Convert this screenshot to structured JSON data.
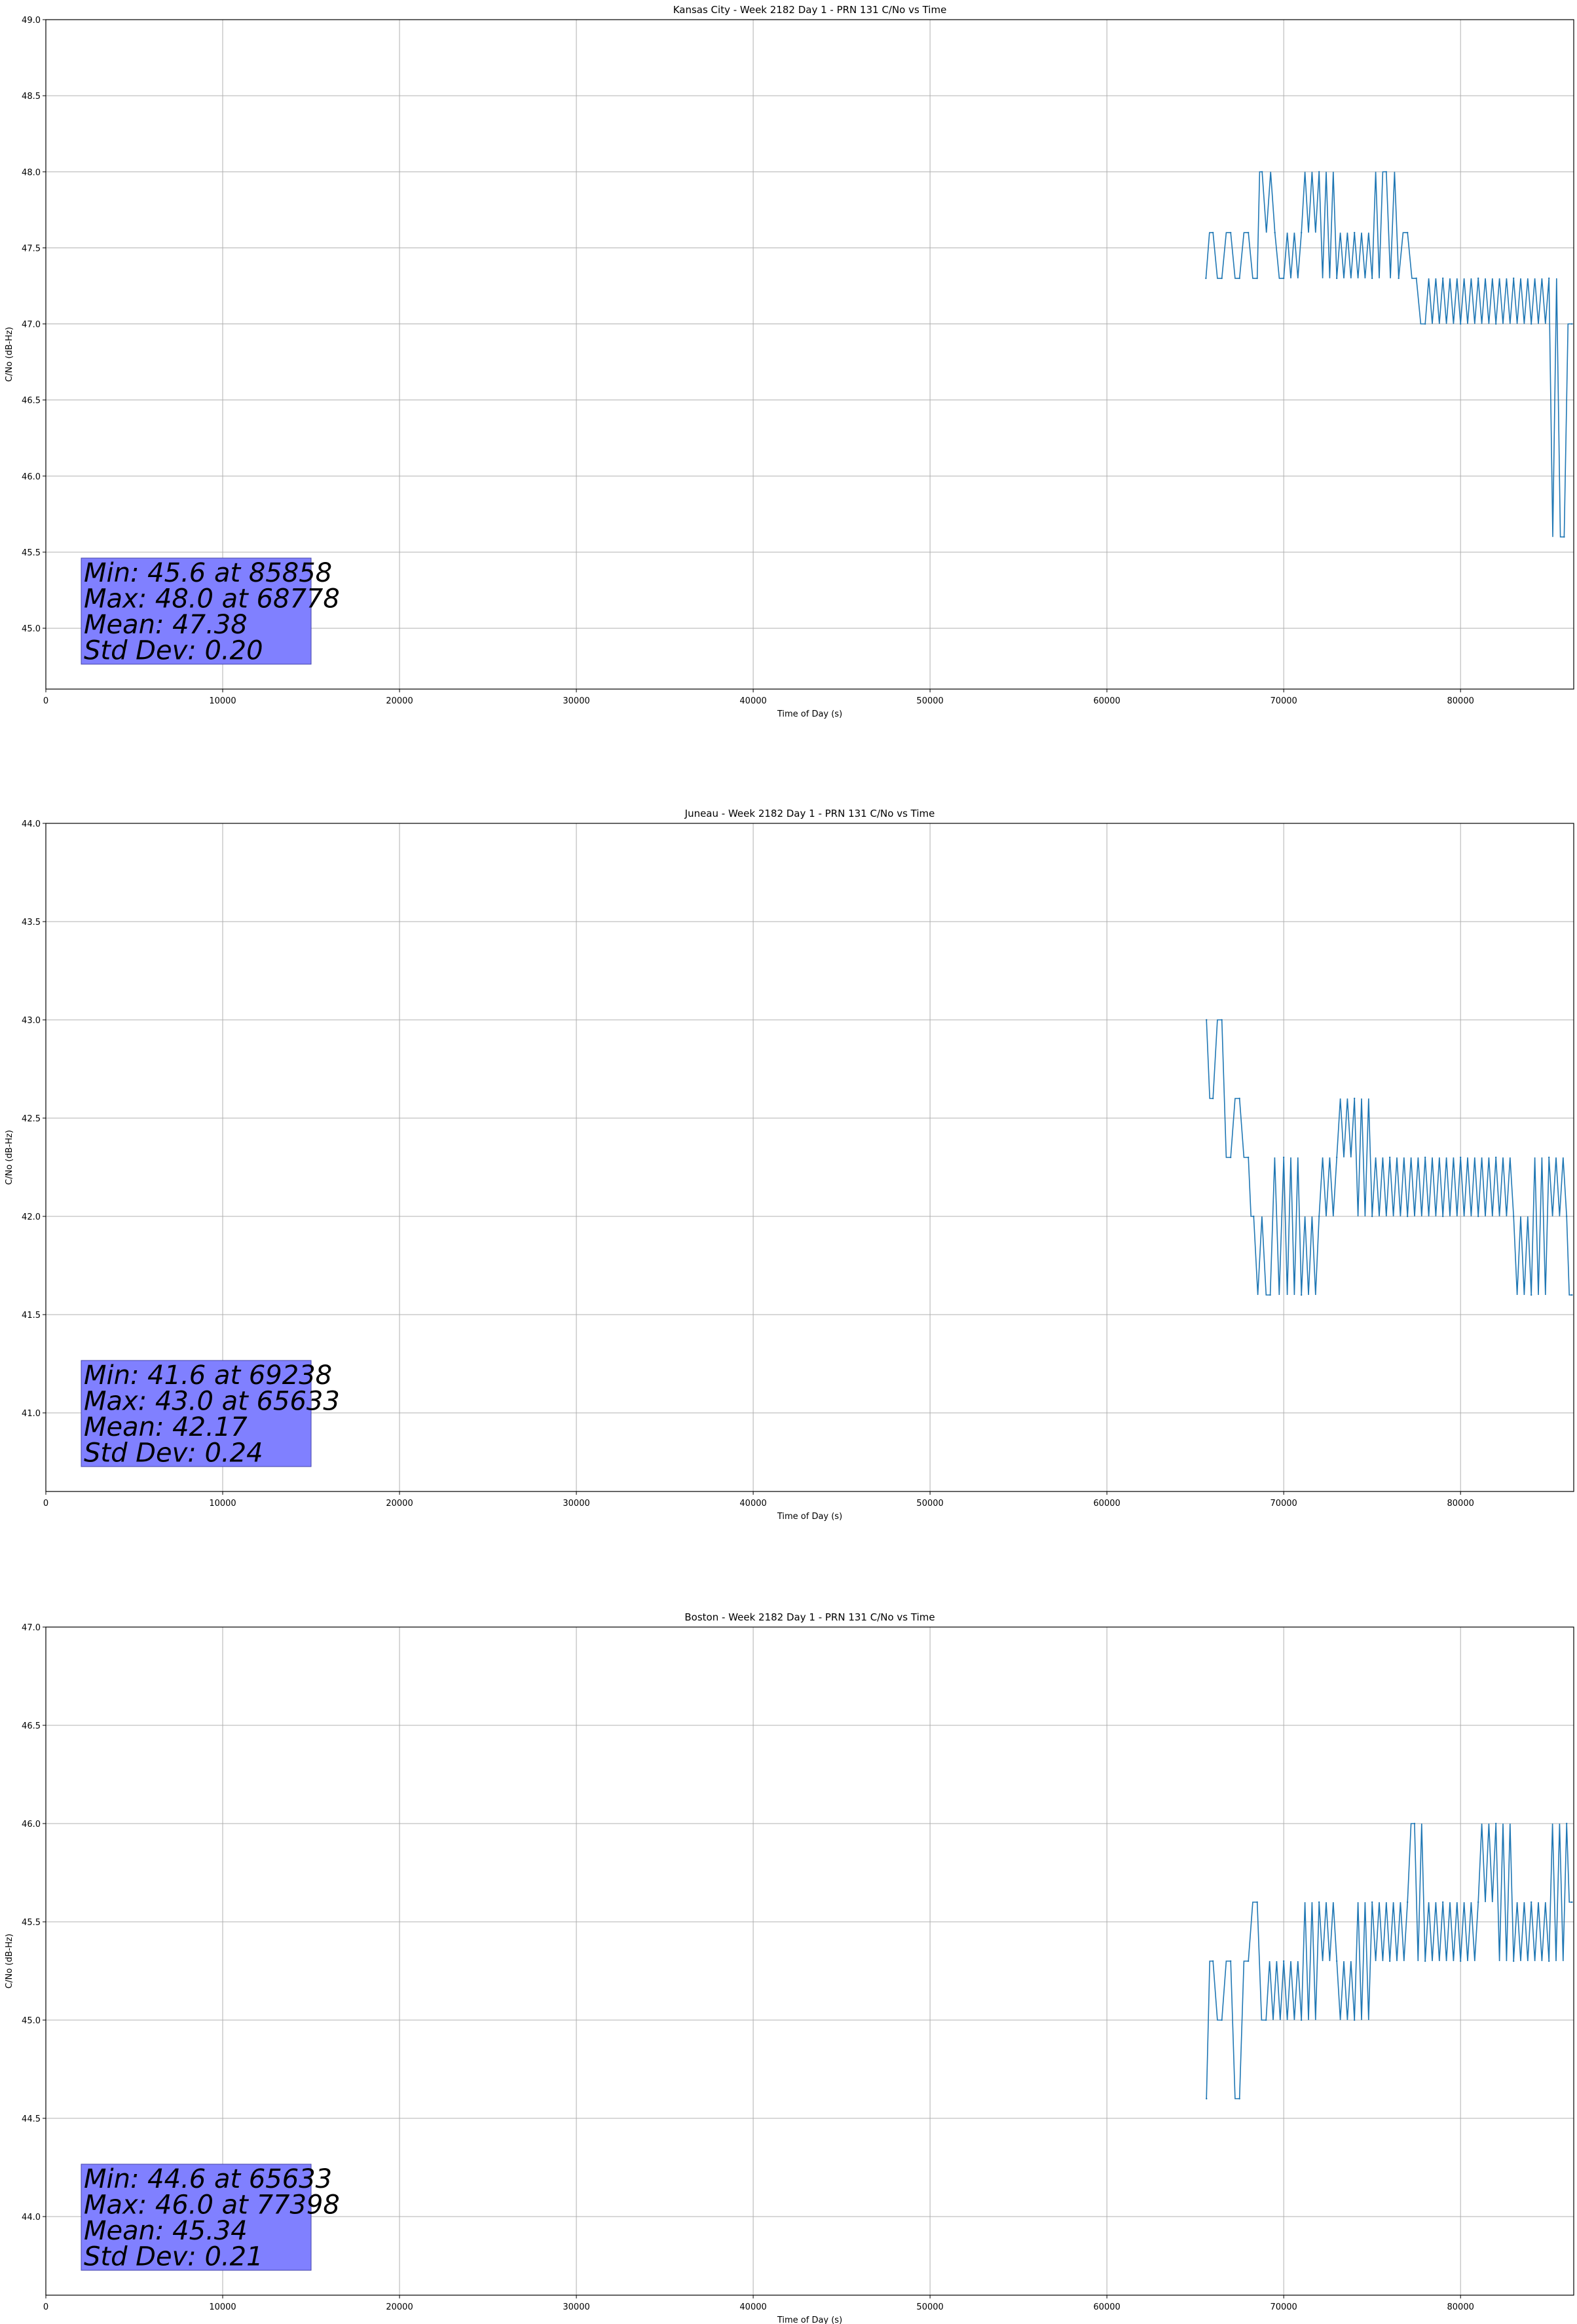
{
  "chart_data": [
    {
      "type": "line",
      "title": "Kansas City - Week 2182 Day 1 - PRN 131 C/No vs Time",
      "xlabel": "Time of Day (s)",
      "ylabel": "C/No (dB-Hz)",
      "xlim": [
        0,
        86400
      ],
      "ylim": [
        44.6,
        49.0
      ],
      "xticks": [
        0,
        10000,
        20000,
        30000,
        40000,
        50000,
        60000,
        70000,
        80000
      ],
      "yticks": [
        45.0,
        45.5,
        46.0,
        46.5,
        47.0,
        47.5,
        48.0,
        48.5,
        49.0
      ],
      "ytick_labels": [
        "45.0",
        "45.5",
        "46.0",
        "46.5",
        "47.0",
        "47.5",
        "48.0",
        "48.5",
        "49.0"
      ],
      "grid": true,
      "series": [
        {
          "color": "#1f77b4",
          "x": [
            65600,
            66000,
            66500,
            67000,
            67500,
            68000,
            68500,
            68778,
            69500,
            70000,
            71000,
            72000,
            73000,
            74000,
            75000,
            75800,
            76500,
            77000,
            77500,
            78000,
            79000,
            80000,
            81000,
            82000,
            83000,
            84000,
            85000,
            85858,
            86300
          ],
          "y": [
            47.3,
            47.6,
            47.3,
            47.6,
            47.3,
            47.6,
            47.3,
            48.0,
            47.6,
            47.3,
            47.6,
            48.0,
            47.3,
            47.6,
            47.3,
            48.0,
            47.3,
            47.6,
            47.3,
            47.0,
            47.3,
            47.0,
            47.3,
            47.0,
            47.3,
            47.0,
            47.3,
            45.6,
            47.0
          ]
        }
      ],
      "stats": [
        "Min: 45.6 at 85858",
        "Max: 48.0 at 68778",
        "Mean: 47.38",
        "Std Dev: 0.20"
      ]
    },
    {
      "type": "line",
      "title": "Juneau - Week 2182 Day 1 - PRN 131 C/No vs Time",
      "xlabel": "Time of Day (s)",
      "ylabel": "C/No (dB-Hz)",
      "xlim": [
        0,
        86400
      ],
      "ylim": [
        40.6,
        44.0
      ],
      "xticks": [
        0,
        10000,
        20000,
        30000,
        40000,
        50000,
        60000,
        70000,
        80000
      ],
      "yticks": [
        41.0,
        41.5,
        42.0,
        42.5,
        43.0,
        43.5,
        44.0
      ],
      "ytick_labels": [
        "41.0",
        "41.5",
        "42.0",
        "42.5",
        "43.0",
        "43.5",
        "44.0"
      ],
      "grid": true,
      "series": [
        {
          "color": "#1f77b4",
          "x": [
            65633,
            66000,
            66500,
            67000,
            67500,
            68000,
            68300,
            69238,
            70000,
            71000,
            72000,
            73000,
            74000,
            75000,
            76000,
            77000,
            78000,
            79000,
            80000,
            81000,
            82000,
            83000,
            84000,
            85000,
            86000,
            86300
          ],
          "y": [
            43.0,
            42.6,
            43.0,
            42.3,
            42.6,
            42.3,
            42.0,
            41.6,
            42.3,
            41.6,
            42.0,
            42.3,
            42.6,
            42.0,
            42.3,
            42.0,
            42.3,
            42.0,
            42.3,
            42.0,
            42.3,
            42.0,
            41.6,
            42.3,
            42.0,
            41.6
          ]
        }
      ],
      "stats": [
        "Min: 41.6 at 69238",
        "Max: 43.0 at 65633",
        "Mean: 42.17",
        "Std Dev: 0.24"
      ]
    },
    {
      "type": "line",
      "title": "Boston - Week 2182 Day 1 - PRN 131 C/No vs Time",
      "xlabel": "Time of Day (s)",
      "ylabel": "C/No (dB-Hz)",
      "xlim": [
        0,
        86400
      ],
      "ylim": [
        43.6,
        47.0
      ],
      "xticks": [
        0,
        10000,
        20000,
        30000,
        40000,
        50000,
        60000,
        70000,
        80000
      ],
      "yticks": [
        44.0,
        44.5,
        45.0,
        45.5,
        46.0,
        46.5,
        47.0
      ],
      "ytick_labels": [
        "44.0",
        "44.5",
        "45.0",
        "45.5",
        "46.0",
        "46.5",
        "47.0"
      ],
      "grid": true,
      "series": [
        {
          "color": "#1f77b4",
          "x": [
            65633,
            66000,
            66500,
            67000,
            67500,
            68000,
            68500,
            69000,
            70000,
            71000,
            72000,
            73000,
            74000,
            75000,
            76000,
            77000,
            77398,
            78000,
            79000,
            80000,
            81000,
            82000,
            83000,
            84000,
            85000,
            86000,
            86300
          ],
          "y": [
            44.6,
            45.3,
            45.0,
            45.3,
            44.6,
            45.3,
            45.6,
            45.0,
            45.3,
            45.0,
            45.6,
            45.3,
            45.0,
            45.6,
            45.3,
            45.6,
            46.0,
            45.3,
            45.6,
            45.3,
            45.6,
            46.0,
            45.3,
            45.6,
            45.3,
            46.0,
            45.6
          ]
        }
      ],
      "stats": [
        "Min: 44.6 at 65633",
        "Max: 46.0 at 77398",
        "Mean: 45.34",
        "Std Dev: 0.21"
      ]
    }
  ]
}
